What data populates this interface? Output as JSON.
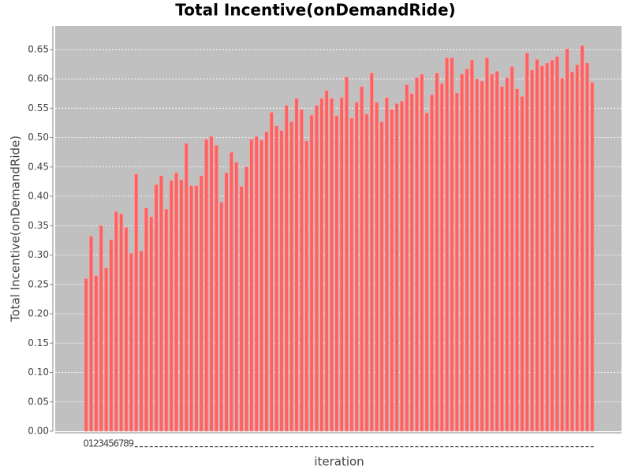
{
  "chart_data": {
    "type": "bar",
    "title": "Total Incentive(onDemandRide)",
    "x_label": "iteration",
    "y_label": "Total Incentive(onDemandRide)",
    "color": "#ff6060",
    "grid": true,
    "categories": [
      "0",
      "1",
      "2",
      "3",
      "4",
      "5",
      "6",
      "7",
      "8",
      "9",
      null,
      null,
      null,
      null,
      null,
      null,
      null,
      null,
      null,
      null,
      null,
      null,
      null,
      null,
      null,
      null,
      null,
      null,
      null,
      null,
      null,
      null,
      null,
      null,
      null,
      null,
      null,
      null,
      null,
      null,
      null,
      null,
      null,
      null,
      null,
      null,
      null,
      null,
      null,
      null,
      null,
      null,
      null,
      null,
      null,
      null,
      null,
      null,
      null,
      null,
      null,
      null,
      null,
      null,
      null,
      null,
      null,
      null,
      null,
      null,
      null,
      null,
      null,
      null,
      null,
      null,
      null,
      null,
      null,
      null,
      null,
      null,
      null,
      null,
      null,
      null,
      null,
      null,
      null,
      null,
      null,
      null,
      null,
      null,
      null,
      null,
      null,
      null,
      null,
      null,
      null,
      null
    ],
    "values": [
      0.26,
      0.332,
      0.265,
      0.35,
      0.278,
      0.326,
      0.374,
      0.37,
      0.347,
      0.303,
      0.438,
      0.307,
      0.38,
      0.365,
      0.42,
      0.435,
      0.378,
      0.427,
      0.44,
      0.428,
      0.49,
      0.418,
      0.418,
      0.435,
      0.497,
      0.502,
      0.487,
      0.39,
      0.44,
      0.475,
      0.458,
      0.417,
      0.45,
      0.497,
      0.502,
      0.496,
      0.51,
      0.543,
      0.52,
      0.512,
      0.555,
      0.527,
      0.567,
      0.548,
      0.494,
      0.538,
      0.555,
      0.567,
      0.58,
      0.567,
      0.537,
      0.568,
      0.603,
      0.533,
      0.56,
      0.587,
      0.54,
      0.61,
      0.56,
      0.527,
      0.568,
      0.548,
      0.558,
      0.562,
      0.59,
      0.575,
      0.602,
      0.608,
      0.542,
      0.573,
      0.61,
      0.592,
      0.636,
      0.636,
      0.576,
      0.608,
      0.617,
      0.632,
      0.6,
      0.596,
      0.636,
      0.608,
      0.613,
      0.587,
      0.602,
      0.621,
      0.583,
      0.57,
      0.644,
      0.615,
      0.633,
      0.622,
      0.627,
      0.632,
      0.638,
      0.601,
      0.651,
      0.612,
      0.624,
      0.657,
      0.627,
      0.594
    ],
    "ylim": [
      0,
      0.69
    ],
    "yticks": [
      {
        "value": 0,
        "label": "0.00"
      },
      {
        "value": 0.05,
        "label": "0.05"
      },
      {
        "value": 0.1,
        "label": "0.10"
      },
      {
        "value": 0.15,
        "label": "0.15"
      },
      {
        "value": 0.2,
        "label": "0.20"
      },
      {
        "value": 0.25,
        "label": "0.25"
      },
      {
        "value": 0.3,
        "label": "0.30"
      },
      {
        "value": 0.35,
        "label": "0.35"
      },
      {
        "value": 0.4,
        "label": "0.40"
      },
      {
        "value": 0.45,
        "label": "0.45"
      },
      {
        "value": 0.5,
        "label": "0.50"
      },
      {
        "value": 0.55,
        "label": "0.55"
      },
      {
        "value": 0.6,
        "label": "0.60"
      },
      {
        "value": 0.65,
        "label": "0.65"
      }
    ]
  }
}
